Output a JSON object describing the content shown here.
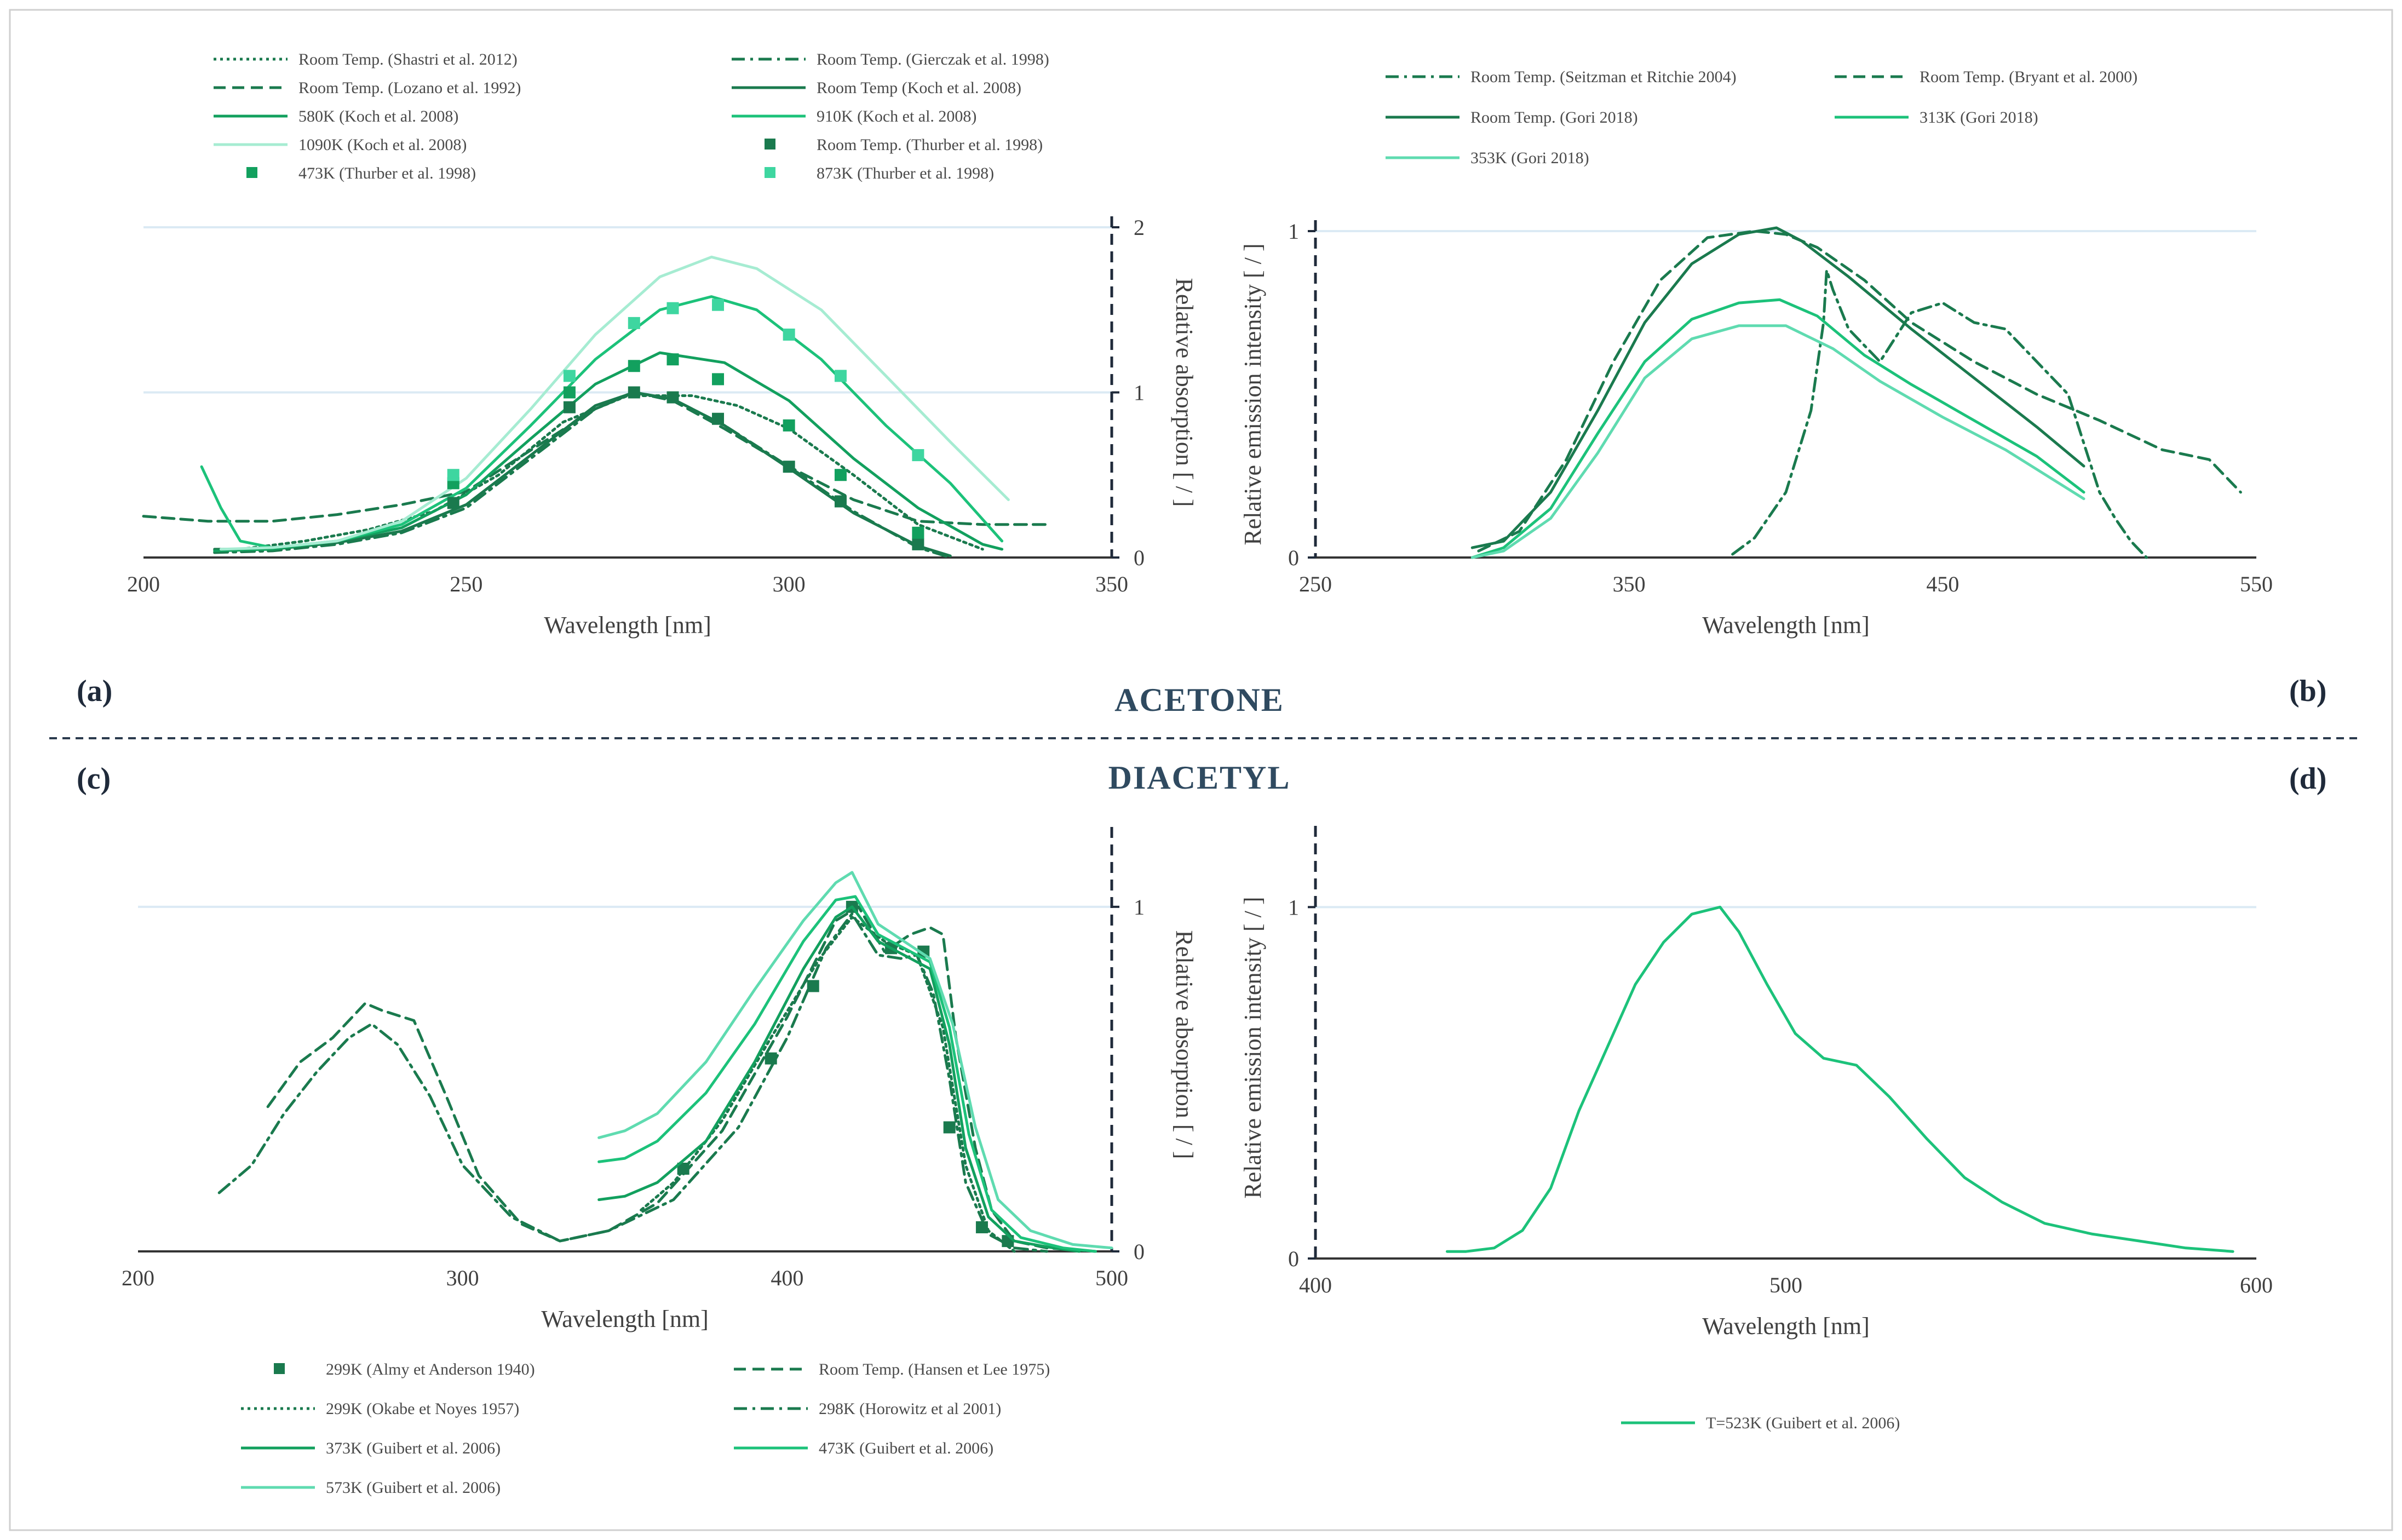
{
  "section_labels": {
    "top": "ACETONE",
    "bottom": "DIACETYL"
  },
  "colors": {
    "dark": "#1a7a4e",
    "mid": "#12a05e",
    "bright": "#1cc27a",
    "light": "#5fdbb0",
    "pale": "#a6ecd2",
    "grid": "#dbeaf4",
    "axis": "#1f2a3a"
  },
  "chart_data": [
    {
      "id": "a",
      "panel_label": "(a)",
      "type": "line",
      "title": "ACETONE absorption",
      "xlabel": "Wavelength [nm]",
      "ylabel": "Relative absorption [ / ]",
      "ylabel_side": "right",
      "xlim": [
        200,
        350
      ],
      "ylim": [
        0,
        2
      ],
      "xticks": [
        "200",
        "250",
        "300",
        "350"
      ],
      "yticks": [
        "0",
        "1",
        "2"
      ],
      "xtick_values": [
        200,
        250,
        300,
        350
      ],
      "ytick_values": [
        0,
        1,
        2
      ],
      "gridlines": [
        1,
        2
      ],
      "legend_position": "top",
      "series": [
        {
          "name": "Room Temp. (Shastri et al. 2012)",
          "style": "dotted",
          "color": "#1a7a4e",
          "x": [
            215,
            225,
            235,
            245,
            255,
            265,
            275,
            285,
            292,
            300,
            310,
            320,
            330
          ],
          "y": [
            0.05,
            0.1,
            0.17,
            0.28,
            0.5,
            0.82,
            0.98,
            0.98,
            0.92,
            0.78,
            0.5,
            0.2,
            0.05
          ]
        },
        {
          "name": "Room Temp. (Gierczak et al. 1998)",
          "style": "dashdot",
          "color": "#1a7a4e",
          "x": [
            211,
            220,
            230,
            240,
            250,
            260,
            270,
            276,
            282,
            290,
            300,
            310,
            320,
            325
          ],
          "y": [
            0.03,
            0.04,
            0.08,
            0.15,
            0.3,
            0.6,
            0.9,
            1.0,
            0.96,
            0.8,
            0.55,
            0.28,
            0.06,
            0.0
          ]
        },
        {
          "name": "Room Temp. (Lozano et al. 1992)",
          "style": "dashed",
          "color": "#1a7a4e",
          "x": [
            200,
            210,
            220,
            230,
            240,
            250,
            260,
            270,
            276,
            282,
            290,
            300,
            310,
            320,
            330,
            340
          ],
          "y": [
            0.25,
            0.22,
            0.22,
            0.26,
            0.32,
            0.4,
            0.65,
            0.9,
            1.0,
            0.95,
            0.78,
            0.55,
            0.35,
            0.22,
            0.2,
            0.2
          ]
        },
        {
          "name": "Room Temp (Koch et al. 2008)",
          "style": "solid",
          "color": "#1a7a4e",
          "x": [
            211,
            220,
            230,
            240,
            250,
            260,
            270,
            276,
            282,
            290,
            300,
            310,
            320,
            325
          ],
          "y": [
            0.05,
            0.05,
            0.09,
            0.16,
            0.32,
            0.62,
            0.92,
            1.0,
            0.96,
            0.8,
            0.54,
            0.27,
            0.07,
            0.01
          ]
        },
        {
          "name": "580K (Koch et al. 2008)",
          "style": "solid",
          "color": "#12a05e",
          "x": [
            211,
            220,
            230,
            240,
            250,
            260,
            270,
            280,
            290,
            300,
            310,
            320,
            330,
            333
          ],
          "y": [
            0.04,
            0.05,
            0.1,
            0.18,
            0.38,
            0.72,
            1.05,
            1.24,
            1.18,
            0.95,
            0.6,
            0.3,
            0.08,
            0.05
          ]
        },
        {
          "name": "910K (Koch et al. 2008)",
          "style": "solid",
          "color": "#1cc27a",
          "x": [
            209,
            212,
            215,
            220,
            230,
            240,
            250,
            260,
            270,
            280,
            288,
            295,
            305,
            315,
            325,
            333
          ],
          "y": [
            0.55,
            0.3,
            0.1,
            0.06,
            0.1,
            0.2,
            0.42,
            0.8,
            1.2,
            1.5,
            1.58,
            1.5,
            1.2,
            0.8,
            0.45,
            0.1
          ]
        },
        {
          "name": "1090K (Koch et al. 2008)",
          "style": "solid",
          "color": "#a6ecd2",
          "x": [
            212,
            220,
            230,
            240,
            250,
            260,
            270,
            280,
            288,
            295,
            305,
            315,
            325,
            334
          ],
          "y": [
            0.05,
            0.06,
            0.1,
            0.22,
            0.48,
            0.9,
            1.35,
            1.7,
            1.82,
            1.75,
            1.5,
            1.1,
            0.7,
            0.35
          ]
        },
        {
          "name": "Room Temp. (Thurber et al. 1998)",
          "style": "square",
          "color": "#1a7a4e",
          "x": [
            248,
            266,
            276,
            282,
            289,
            300,
            308,
            320
          ],
          "y": [
            0.33,
            0.91,
            1.0,
            0.97,
            0.84,
            0.55,
            0.34,
            0.08
          ]
        },
        {
          "name": "473K (Thurber et al. 1998)",
          "style": "square",
          "color": "#12a05e",
          "x": [
            248,
            266,
            276,
            282,
            289,
            300,
            308,
            320
          ],
          "y": [
            0.45,
            1.0,
            1.16,
            1.2,
            1.08,
            0.8,
            0.5,
            0.15
          ]
        },
        {
          "name": "873K (Thurber et al. 1998)",
          "style": "square",
          "color": "#3ed6a0",
          "x": [
            248,
            266,
            276,
            282,
            289,
            300,
            308,
            320
          ],
          "y": [
            0.5,
            1.1,
            1.42,
            1.51,
            1.53,
            1.35,
            1.1,
            0.62
          ]
        }
      ]
    },
    {
      "id": "b",
      "panel_label": "(b)",
      "type": "line",
      "title": "ACETONE emission",
      "xlabel": "Wavelength [nm]",
      "ylabel": "Relative emission intensity [ / ]",
      "ylabel_side": "left",
      "xlim": [
        250,
        550
      ],
      "ylim": [
        0,
        1
      ],
      "xticks": [
        "250",
        "350",
        "450",
        "550"
      ],
      "yticks": [
        "0",
        "1"
      ],
      "xtick_values": [
        250,
        350,
        450,
        550
      ],
      "ytick_values": [
        0,
        1
      ],
      "gridlines": [
        1
      ],
      "legend_position": "top",
      "series": [
        {
          "name": "Room Temp. (Seitzman et Ritchie 2004)",
          "style": "dashdot",
          "color": "#1a7a4e",
          "x": [
            383,
            390,
            400,
            408,
            412,
            413,
            415,
            420,
            430,
            440,
            450,
            460,
            470,
            480,
            490,
            495,
            500,
            505,
            510,
            515
          ],
          "y": [
            0.01,
            0.06,
            0.2,
            0.45,
            0.72,
            0.88,
            0.82,
            0.7,
            0.6,
            0.75,
            0.78,
            0.72,
            0.7,
            0.6,
            0.5,
            0.35,
            0.2,
            0.12,
            0.05,
            0.0
          ]
        },
        {
          "name": "Room Temp. (Bryant et al. 2000)",
          "style": "dashed",
          "color": "#1a7a4e",
          "x": [
            302,
            315,
            330,
            345,
            360,
            375,
            390,
            400,
            410,
            425,
            440,
            460,
            480,
            500,
            520,
            535,
            545
          ],
          "y": [
            0.02,
            0.08,
            0.3,
            0.6,
            0.85,
            0.98,
            1.0,
            0.99,
            0.95,
            0.85,
            0.72,
            0.6,
            0.5,
            0.42,
            0.33,
            0.3,
            0.2
          ]
        },
        {
          "name": "Room Temp. (Gori 2018)",
          "style": "solid",
          "color": "#1a7a4e",
          "x": [
            300,
            310,
            325,
            340,
            355,
            370,
            385,
            397,
            405,
            420,
            440,
            460,
            480,
            495
          ],
          "y": [
            0.03,
            0.05,
            0.2,
            0.45,
            0.72,
            0.9,
            0.99,
            1.01,
            0.97,
            0.86,
            0.7,
            0.55,
            0.4,
            0.28
          ]
        },
        {
          "name": "313K (Gori 2018)",
          "style": "solid",
          "color": "#1cc27a",
          "x": [
            300,
            310,
            325,
            340,
            355,
            370,
            385,
            398,
            410,
            425,
            440,
            460,
            480,
            495
          ],
          "y": [
            0.0,
            0.03,
            0.15,
            0.38,
            0.6,
            0.73,
            0.78,
            0.79,
            0.74,
            0.62,
            0.53,
            0.42,
            0.31,
            0.2
          ]
        },
        {
          "name": "353K (Gori 2018)",
          "style": "solid",
          "color": "#5fdbb0",
          "x": [
            300,
            310,
            325,
            340,
            355,
            370,
            385,
            400,
            415,
            430,
            450,
            470,
            495
          ],
          "y": [
            0.0,
            0.02,
            0.12,
            0.32,
            0.55,
            0.67,
            0.71,
            0.71,
            0.64,
            0.54,
            0.43,
            0.33,
            0.18
          ]
        }
      ]
    },
    {
      "id": "c",
      "panel_label": "(c)",
      "type": "line",
      "title": "DIACETYL absorption",
      "xlabel": "Wavelength [nm]",
      "ylabel": "Relative absorption [ / ]",
      "ylabel_side": "right",
      "xlim": [
        200,
        500
      ],
      "ylim": [
        0,
        1.2
      ],
      "xticks": [
        "200",
        "300",
        "400",
        "500"
      ],
      "yticks": [
        "0",
        "1"
      ],
      "xtick_values": [
        200,
        300,
        400,
        500
      ],
      "ytick_values": [
        0,
        1
      ],
      "gridlines": [
        1
      ],
      "legend_position": "bottom",
      "series": [
        {
          "name": "299K (Almy et Anderson 1940)",
          "style": "square",
          "color": "#1a7a4e",
          "x": [
            368,
            395,
            408,
            420,
            432,
            442,
            450,
            460,
            468
          ],
          "y": [
            0.24,
            0.56,
            0.77,
            1.0,
            0.88,
            0.87,
            0.36,
            0.07,
            0.03
          ]
        },
        {
          "name": "Room Temp. (Hansen et Lee 1975)",
          "style": "dashed",
          "color": "#1a7a4e",
          "x": [
            240,
            250,
            260,
            270,
            275,
            285,
            295,
            305,
            318,
            330,
            345,
            360,
            380,
            400,
            415,
            422,
            430,
            438,
            444,
            448,
            452,
            458,
            463,
            470,
            480,
            495
          ],
          "y": [
            0.42,
            0.55,
            0.62,
            0.72,
            0.7,
            0.67,
            0.45,
            0.22,
            0.08,
            0.03,
            0.06,
            0.14,
            0.35,
            0.68,
            0.96,
            1.0,
            0.87,
            0.92,
            0.94,
            0.92,
            0.62,
            0.3,
            0.12,
            0.03,
            0.01,
            0.0
          ]
        },
        {
          "name": "299K (Okabe et Noyes 1957)",
          "style": "dotted",
          "color": "#1a7a4e",
          "x": [
            355,
            365,
            380,
            395,
            410,
            420,
            430,
            440,
            448,
            455,
            462,
            470
          ],
          "y": [
            0.12,
            0.2,
            0.38,
            0.62,
            0.85,
            0.97,
            0.9,
            0.86,
            0.65,
            0.25,
            0.06,
            0.0
          ]
        },
        {
          "name": "298K (Horowitz et al 2001)",
          "style": "dashdot",
          "color": "#1a7a4e",
          "x": [
            225,
            235,
            245,
            255,
            265,
            272,
            280,
            290,
            300,
            315,
            330,
            345,
            365,
            385,
            400,
            412,
            420,
            428,
            435,
            440,
            445,
            450,
            455,
            462,
            470,
            480
          ],
          "y": [
            0.17,
            0.25,
            0.4,
            0.52,
            0.62,
            0.66,
            0.6,
            0.45,
            0.25,
            0.1,
            0.03,
            0.06,
            0.15,
            0.36,
            0.62,
            0.88,
            0.98,
            0.86,
            0.85,
            0.86,
            0.75,
            0.5,
            0.2,
            0.05,
            0.01,
            0.0
          ]
        },
        {
          "name": "373K (Guibert et al. 2006)",
          "style": "solid",
          "color": "#12a05e",
          "x": [
            342,
            350,
            360,
            375,
            390,
            405,
            415,
            420,
            428,
            436,
            444,
            450,
            455,
            462,
            470,
            482,
            490
          ],
          "y": [
            0.15,
            0.16,
            0.2,
            0.32,
            0.55,
            0.82,
            0.97,
            1.0,
            0.9,
            0.86,
            0.82,
            0.6,
            0.3,
            0.1,
            0.03,
            0.01,
            0.0
          ]
        },
        {
          "name": "473K (Guibert et al. 2006)",
          "style": "solid",
          "color": "#1cc27a",
          "x": [
            342,
            350,
            360,
            375,
            390,
            405,
            415,
            421,
            428,
            436,
            444,
            450,
            456,
            463,
            472,
            485,
            495
          ],
          "y": [
            0.26,
            0.27,
            0.32,
            0.46,
            0.66,
            0.9,
            1.02,
            1.03,
            0.92,
            0.88,
            0.84,
            0.65,
            0.34,
            0.12,
            0.04,
            0.01,
            0.0
          ]
        },
        {
          "name": "573K (Guibert et al. 2006)",
          "style": "solid",
          "color": "#5fdbb0",
          "x": [
            342,
            350,
            360,
            375,
            390,
            405,
            415,
            420,
            428,
            436,
            444,
            451,
            458,
            465,
            475,
            488,
            500
          ],
          "y": [
            0.33,
            0.35,
            0.4,
            0.55,
            0.76,
            0.96,
            1.07,
            1.1,
            0.95,
            0.9,
            0.85,
            0.66,
            0.36,
            0.15,
            0.06,
            0.02,
            0.01
          ]
        }
      ]
    },
    {
      "id": "d",
      "panel_label": "(d)",
      "type": "line",
      "title": "DIACETYL emission",
      "xlabel": "Wavelength [nm]",
      "ylabel": "Relative emission intensity [ / ]",
      "ylabel_side": "left",
      "xlim": [
        400,
        600
      ],
      "ylim": [
        0,
        1.2
      ],
      "xticks": [
        "400",
        "500",
        "600"
      ],
      "yticks": [
        "0",
        "1"
      ],
      "xtick_values": [
        400,
        500,
        600
      ],
      "ytick_values": [
        0,
        1
      ],
      "gridlines": [
        1
      ],
      "legend_position": "bottom",
      "series": [
        {
          "name": "T=523K (Guibert et al. 2006)",
          "style": "solid",
          "color": "#1cc27a",
          "x": [
            428,
            432,
            438,
            444,
            450,
            456,
            462,
            468,
            474,
            480,
            486,
            490,
            496,
            502,
            508,
            515,
            522,
            530,
            538,
            546,
            555,
            565,
            575,
            585,
            595
          ],
          "y": [
            0.02,
            0.02,
            0.03,
            0.08,
            0.2,
            0.42,
            0.6,
            0.78,
            0.9,
            0.98,
            1.0,
            0.93,
            0.78,
            0.64,
            0.57,
            0.55,
            0.46,
            0.34,
            0.23,
            0.16,
            0.1,
            0.07,
            0.05,
            0.03,
            0.02
          ]
        }
      ]
    }
  ]
}
